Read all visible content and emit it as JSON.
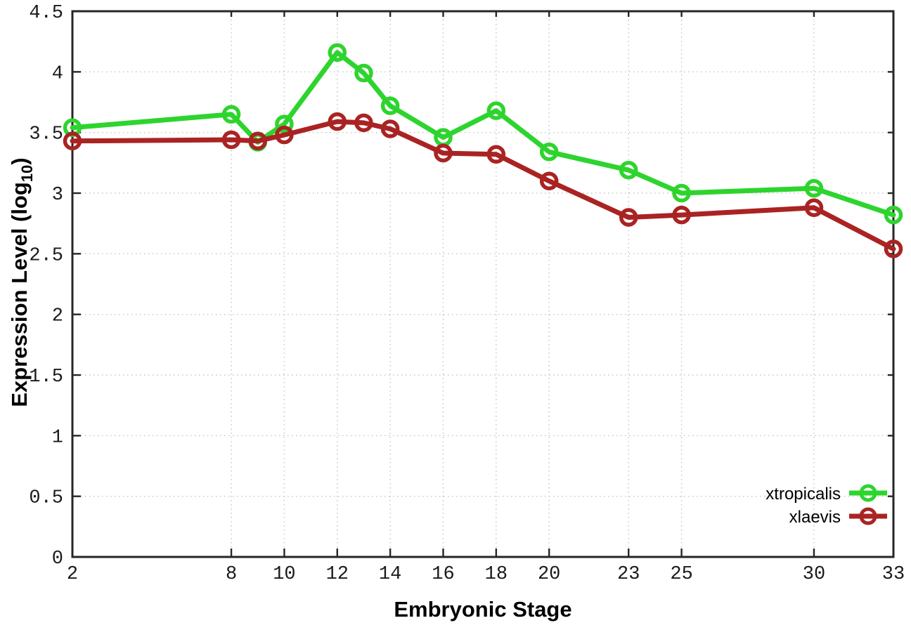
{
  "page": {
    "background": "#ffffff",
    "text_color": "#000000"
  },
  "chart_data": {
    "type": "line",
    "title": "",
    "xlabel": "Embryonic Stage",
    "ylabel_prefix": "Expression Level (log",
    "ylabel_sub": "10",
    "ylabel_suffix": ")",
    "x": [
      2,
      8,
      9,
      10,
      12,
      13,
      14,
      16,
      18,
      20,
      23,
      25,
      30,
      33
    ],
    "x_tick_labels": [
      "2",
      "8",
      "10",
      "12",
      "14",
      "16",
      "18",
      "20",
      "23",
      "25",
      "30",
      "33"
    ],
    "x_ticks": [
      2,
      8,
      10,
      12,
      14,
      16,
      18,
      20,
      23,
      25,
      30,
      33
    ],
    "y_ticks": [
      0,
      0.5,
      1,
      1.5,
      2,
      2.5,
      3,
      3.5,
      4,
      4.5
    ],
    "y_tick_labels": [
      "0",
      "0.5",
      "1",
      "1.5",
      "2",
      "2.5",
      "3",
      "3.5",
      "4",
      "4.5"
    ],
    "xlim": [
      2,
      33
    ],
    "ylim": [
      0,
      4.5
    ],
    "grid": true,
    "grid_style": "dotted",
    "marker": "open-circle",
    "legend_position": "bottom-right",
    "series": [
      {
        "name": "xtropicalis",
        "color": "#2ed42e",
        "values": [
          3.54,
          3.65,
          3.42,
          3.57,
          4.16,
          3.99,
          3.72,
          3.46,
          3.68,
          3.34,
          3.19,
          3.0,
          3.04,
          2.82
        ]
      },
      {
        "name": "xlaevis",
        "color": "#aa2323",
        "values": [
          3.43,
          3.44,
          3.43,
          3.48,
          3.59,
          3.58,
          3.53,
          3.33,
          3.32,
          3.1,
          2.8,
          2.82,
          2.88,
          2.54
        ]
      }
    ]
  }
}
